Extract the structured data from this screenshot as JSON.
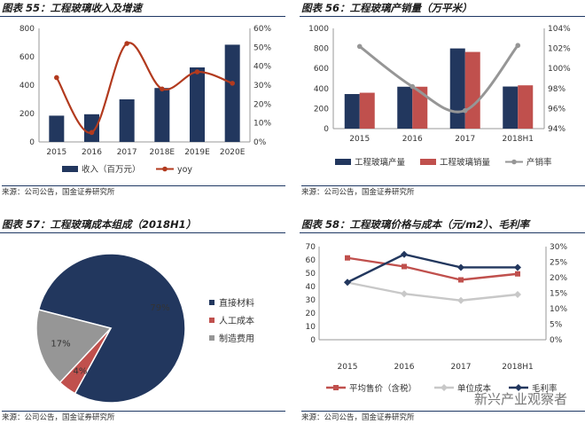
{
  "watermark": "新兴产业观察者",
  "colors": {
    "navy": "#22375e",
    "red": "#c0504d",
    "darkred": "#b23a1e",
    "gray": "#969696",
    "lightgray": "#c8c8c8",
    "rule": "#1f3864"
  },
  "chart_data": [
    {
      "id": "fig55",
      "type": "bar",
      "title": "图表 55：工程玻璃收入及增速",
      "source": "来源：公司公告，国金证券研究所",
      "categories": [
        "2015",
        "2016",
        "2017",
        "2018E",
        "2019E",
        "2020E"
      ],
      "series": [
        {
          "name": "收入（百万元）",
          "axis": "left",
          "kind": "bar",
          "color": "#22375e",
          "values": [
            185,
            195,
            300,
            380,
            525,
            685
          ]
        },
        {
          "name": "yoy",
          "axis": "right",
          "kind": "line",
          "color": "#b23a1e",
          "values": [
            34,
            5,
            52,
            28,
            37,
            31
          ]
        }
      ],
      "ylim": [
        0,
        800
      ],
      "yticks": [
        "0",
        "200",
        "400",
        "600",
        "800"
      ],
      "y2lim": [
        0,
        60
      ],
      "y2ticks": [
        "0%",
        "10%",
        "20%",
        "30%",
        "40%",
        "50%",
        "60%"
      ],
      "legend": "bottom"
    },
    {
      "id": "fig56",
      "type": "bar",
      "title": "图表 56：工程玻璃产销量（万平米）",
      "source": "来源：公司公告，国金证券研究所",
      "categories": [
        "2015",
        "2016",
        "2017",
        "2018H1"
      ],
      "series": [
        {
          "name": "工程玻璃产量",
          "axis": "left",
          "kind": "bar",
          "color": "#22375e",
          "values": [
            345,
            418,
            800,
            420
          ]
        },
        {
          "name": "工程玻璃销量",
          "axis": "left",
          "kind": "bar",
          "color": "#c0504d",
          "values": [
            358,
            418,
            765,
            432
          ]
        },
        {
          "name": "产销率",
          "axis": "right",
          "kind": "line",
          "color": "#969696",
          "values": [
            102.2,
            98.2,
            95.8,
            102.3
          ]
        }
      ],
      "ylim": [
        0,
        1000
      ],
      "yticks": [
        "0",
        "200",
        "400",
        "600",
        "800",
        "1000"
      ],
      "y2lim": [
        94,
        104
      ],
      "y2ticks": [
        "94%",
        "96%",
        "98%",
        "100%",
        "102%",
        "104%"
      ],
      "legend": "bottom"
    },
    {
      "id": "fig57",
      "type": "pie",
      "title": "图表 57：工程玻璃成本组成（2018H1）",
      "source": "来源：公司公告，国金证券研究所",
      "slices": [
        {
          "name": "直接材料",
          "value": 79,
          "label": "79%",
          "color": "#22375e"
        },
        {
          "name": "人工成本",
          "value": 4,
          "label": "4%",
          "color": "#c0504d"
        },
        {
          "name": "制造费用",
          "value": 17,
          "label": "17%",
          "color": "#969696"
        }
      ],
      "legend": "right"
    },
    {
      "id": "fig58",
      "type": "line",
      "title": "图表 58：工程玻璃价格与成本（元/m2）、毛利率",
      "source": "来源：公司公告，国金证券研究所",
      "categories": [
        "2015",
        "2016",
        "2017",
        "2018H1"
      ],
      "series": [
        {
          "name": "平均售价（含税）",
          "axis": "left",
          "color": "#c0504d",
          "marker": "square",
          "values": [
            61.5,
            55,
            45,
            49.5
          ]
        },
        {
          "name": "单位成本",
          "axis": "left",
          "color": "#c8c8c8",
          "marker": "diamond",
          "values": [
            43,
            34.5,
            29.5,
            34
          ]
        },
        {
          "name": "毛利率",
          "axis": "right",
          "color": "#22375e",
          "marker": "diamond",
          "values": [
            18.5,
            27.5,
            23.3,
            23.3
          ]
        }
      ],
      "ylim": [
        0,
        70
      ],
      "yticks": [
        "0",
        "10",
        "20",
        "30",
        "40",
        "50",
        "60",
        "70"
      ],
      "y2lim": [
        0,
        30
      ],
      "y2ticks": [
        "0%",
        "5%",
        "10%",
        "15%",
        "20%",
        "25%",
        "30%"
      ],
      "legend": "bottom"
    }
  ]
}
